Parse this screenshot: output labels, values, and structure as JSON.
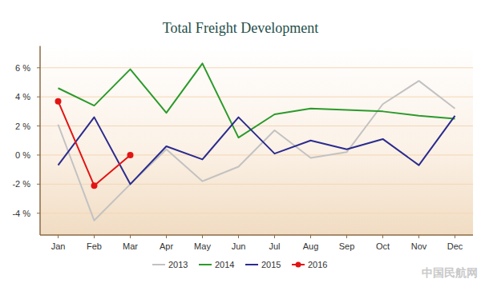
{
  "chart_data": {
    "type": "line",
    "title": "Total Freight Development",
    "source": "中国民航网",
    "categories": [
      "Jan",
      "Feb",
      "Mar",
      "Apr",
      "May",
      "Jun",
      "Jul",
      "Aug",
      "Sep",
      "Oct",
      "Nov",
      "Dec"
    ],
    "series": [
      {
        "name": "2013",
        "color": "#c2c2c2",
        "values": [
          2.1,
          -4.5,
          -2.0,
          0.4,
          -1.8,
          -0.8,
          1.7,
          -0.2,
          0.2,
          3.5,
          5.1,
          3.2
        ]
      },
      {
        "name": "2014",
        "color": "#2b9a2b",
        "values": [
          4.6,
          3.4,
          5.9,
          2.9,
          6.3,
          1.2,
          2.8,
          3.2,
          3.1,
          3.0,
          2.7,
          2.5
        ]
      },
      {
        "name": "2015",
        "color": "#2b2b8e",
        "values": [
          -0.7,
          2.6,
          -2.0,
          0.6,
          -0.3,
          2.6,
          0.1,
          1.0,
          0.4,
          1.1,
          -0.7,
          2.7
        ]
      },
      {
        "name": "2016",
        "color": "#e31414",
        "marker": "circle",
        "values": [
          3.7,
          -2.1,
          0.0,
          null,
          null,
          null,
          null,
          null,
          null,
          null,
          null,
          null
        ]
      }
    ],
    "ylim": [
      -5.5,
      7.5
    ],
    "yticks": [
      {
        "value": -4,
        "label": "-4 %"
      },
      {
        "value": -2,
        "label": "-2 %"
      },
      {
        "value": 0,
        "label": "0 %"
      },
      {
        "value": 2,
        "label": "2 %"
      },
      {
        "value": 4,
        "label": "4 %"
      },
      {
        "value": 6,
        "label": "6 %"
      }
    ],
    "grid": true,
    "legend": "bottom"
  }
}
